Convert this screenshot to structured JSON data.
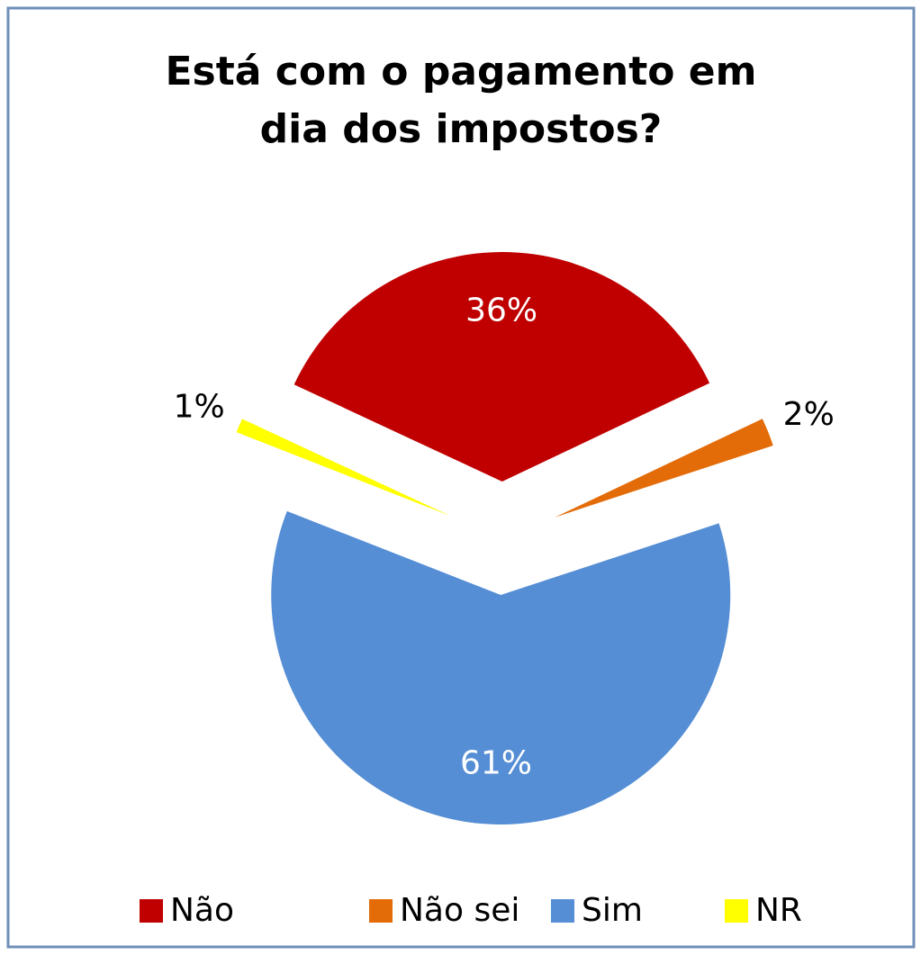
{
  "chart_data": {
    "type": "pie",
    "title": "Está com o pagamento em dia dos impostos?",
    "categories": [
      "Não",
      "Não sei",
      "Sim",
      "NR"
    ],
    "values": [
      36,
      2,
      61,
      1
    ],
    "value_labels": [
      "36%",
      "2%",
      "61%",
      "1%"
    ],
    "colors": [
      "#C00000",
      "#E36C09",
      "#558ED5",
      "#FFFF00"
    ],
    "legend": "bottom"
  }
}
